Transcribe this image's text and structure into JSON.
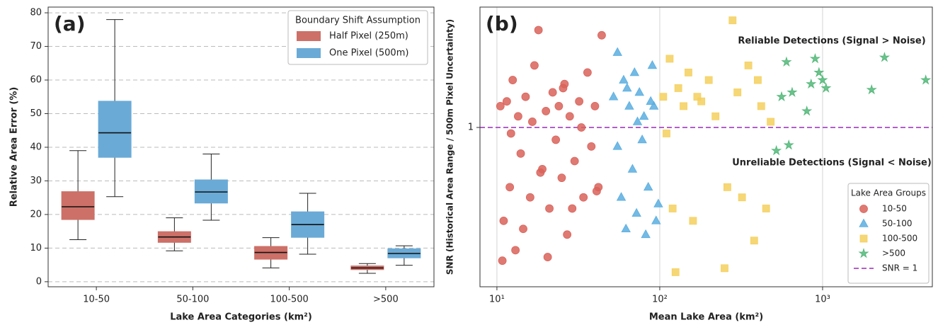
{
  "chart_data": [
    {
      "type": "box",
      "label": "(a)",
      "xlabel": "Lake Area Categories (km²)",
      "ylabel": "Relative Area Error (%)",
      "categories": [
        "10-50",
        "50-100",
        "100-500",
        ">500"
      ],
      "ylim": [
        -1.5,
        81.7
      ],
      "yticks": [
        0,
        10,
        20,
        30,
        40,
        50,
        60,
        70,
        80
      ],
      "grid": true,
      "legend_title": "Boundary Shift Assumption",
      "legend": "upper right",
      "series": [
        {
          "name": "Half Pixel (250m)",
          "color": "#cd7068",
          "values": [
            {
              "whislo": 12.5,
              "q1": 18.5,
              "med": 22.3,
              "q3": 26.8,
              "whishi": 39
            },
            {
              "whislo": 9.2,
              "q1": 11.7,
              "med": 13.3,
              "q3": 14.9,
              "whishi": 19
            },
            {
              "whislo": 4.1,
              "q1": 6.7,
              "med": 8.7,
              "q3": 10.5,
              "whishi": 13.1
            },
            {
              "whislo": 2.5,
              "q1": 3.6,
              "med": 4.1,
              "q3": 4.7,
              "whishi": 5.4
            }
          ]
        },
        {
          "name": "One Pixel (500m)",
          "color": "#6aaad6",
          "values": [
            {
              "whislo": 25.3,
              "q1": 37,
              "med": 44.3,
              "q3": 53.7,
              "whishi": 78
            },
            {
              "whislo": 18.3,
              "q1": 23.4,
              "med": 26.7,
              "q3": 30.3,
              "whishi": 38
            },
            {
              "whislo": 8.2,
              "q1": 13.2,
              "med": 17,
              "q3": 20.8,
              "whishi": 26.3
            },
            {
              "whislo": 4.9,
              "q1": 7.1,
              "med": 8.4,
              "q3": 9.8,
              "whishi": 10.7
            }
          ]
        }
      ]
    },
    {
      "type": "scatter",
      "label": "(b)",
      "xlabel": "Mean Lake Area (km²)",
      "ylabel": "SNR (Historical Area Range / 500m Pixel Uncertainty)",
      "xscale": "log",
      "yscale": "log",
      "xlim": [
        7.87,
        4720
      ],
      "ylim": [
        0.256,
        2.8
      ],
      "xticks": [
        {
          "value": 10,
          "label": "10¹"
        },
        {
          "value": 100,
          "label": "10²"
        },
        {
          "value": 1000,
          "label": "10³"
        }
      ],
      "yticks": [
        1
      ],
      "grid": true,
      "legend_title": "Lake Area Groups",
      "legend": "lower right",
      "reference_line": {
        "name": "SNR = 1",
        "value": 1,
        "color": "#b160c8"
      },
      "annotations": [
        {
          "text": "Reliable Detections (Signal > Noise)",
          "color": "#4b6e2b"
        },
        {
          "text": "Unreliable Detections (Signal < Noise)",
          "color": "#c4203c"
        }
      ],
      "series": [
        {
          "name": "10-50",
          "color": "#d9635a",
          "marker": "circle",
          "x": [
            10.5,
            11,
            11.5,
            12,
            12.5,
            13,
            13.5,
            14,
            15,
            16,
            17,
            18,
            19,
            20,
            21,
            22,
            23,
            24,
            25,
            26,
            27,
            28,
            30,
            32,
            34,
            36,
            38,
            40,
            42,
            44,
            10.8,
            12.2,
            14.5,
            16.5,
            18.5,
            20.5,
            25.5,
            29,
            33,
            41
          ],
          "y": [
            1.2,
            0.45,
            1.25,
            0.6,
            1.5,
            0.35,
            1.1,
            0.8,
            1.3,
            0.55,
            1.7,
            2.3,
            0.7,
            1.15,
            0.5,
            1.35,
            0.9,
            1.2,
            0.65,
            1.45,
            0.4,
            1.1,
            0.75,
            1.25,
            0.55,
            1.6,
            0.85,
            1.2,
            0.6,
            2.2,
            0.32,
            0.95,
            0.42,
            1.05,
            0.68,
            0.33,
            1.4,
            0.5,
            1.0,
            0.58
          ]
        },
        {
          "name": "50-100",
          "color": "#5aaee0",
          "marker": "triangle",
          "x": [
            52,
            55,
            58,
            60,
            62,
            65,
            68,
            70,
            72,
            75,
            78,
            80,
            85,
            88,
            90,
            95,
            98,
            55,
            63,
            73,
            82,
            92
          ],
          "y": [
            1.3,
            1.9,
            0.55,
            1.5,
            0.42,
            1.2,
            0.7,
            1.6,
            0.48,
            1.35,
            0.9,
            1.1,
            0.6,
            1.25,
            1.7,
            0.45,
            0.52,
            0.85,
            1.4,
            1.05,
            0.4,
            1.2
          ]
        },
        {
          "name": "100-500",
          "color": "#f5d05e",
          "marker": "square",
          "x": [
            105,
            115,
            120,
            130,
            140,
            150,
            160,
            180,
            200,
            220,
            250,
            280,
            300,
            320,
            350,
            380,
            420,
            450,
            480,
            125,
            170,
            260,
            400,
            110
          ],
          "y": [
            1.3,
            1.8,
            0.5,
            1.4,
            1.2,
            1.6,
            0.45,
            1.25,
            1.5,
            1.1,
            0.3,
            2.5,
            1.35,
            0.55,
            1.7,
            0.38,
            1.2,
            0.5,
            1.05,
            0.29,
            1.3,
            0.6,
            1.5,
            0.95
          ]
        },
        {
          "name": ">500",
          "color": "#52b778",
          "marker": "star",
          "x": [
            520,
            560,
            600,
            650,
            800,
            850,
            900,
            950,
            1000,
            1050,
            2000,
            2400,
            4300,
            620
          ],
          "y": [
            0.82,
            1.3,
            1.75,
            1.35,
            1.15,
            1.45,
            1.8,
            1.6,
            1.5,
            1.4,
            1.38,
            1.82,
            1.5,
            0.86
          ]
        }
      ]
    }
  ]
}
